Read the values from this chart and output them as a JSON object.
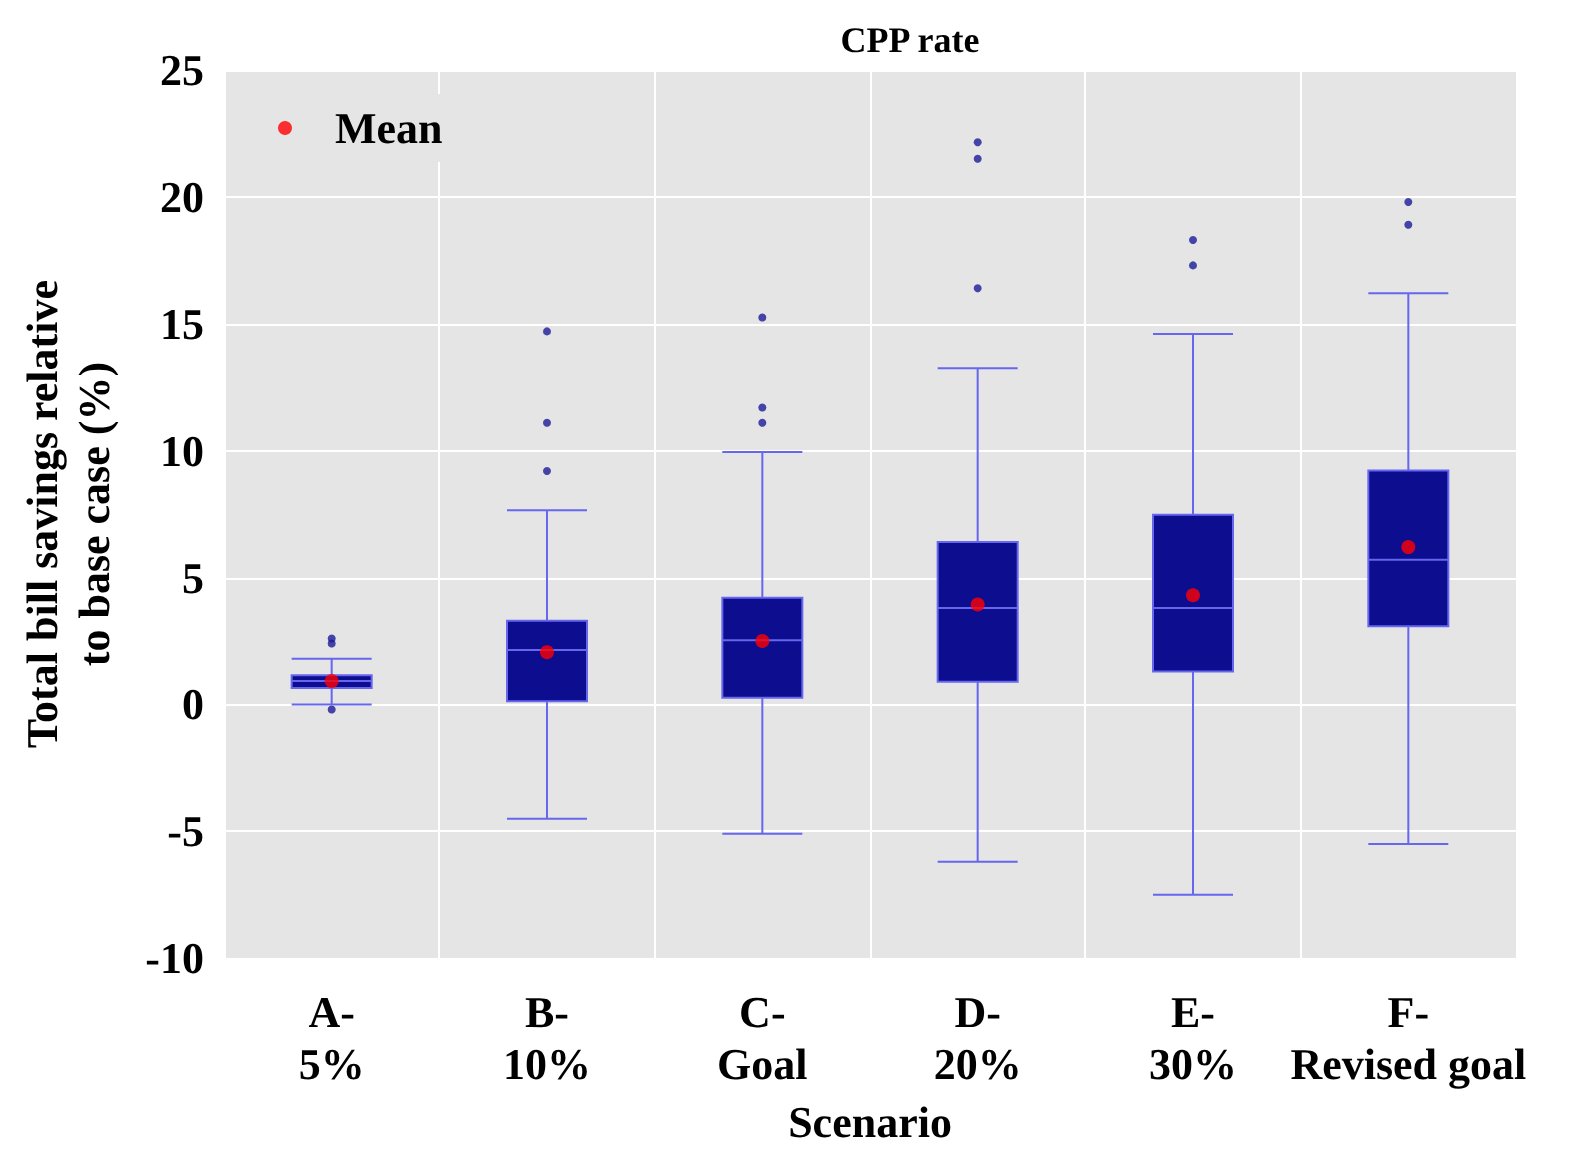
{
  "chart_data": {
    "type": "box",
    "title": "CPP rate",
    "xlabel": "Scenario",
    "ylabel": "Total bill savings relative\nto base case (%)",
    "categories": [
      "A-\n5%",
      "B-\n10%",
      "C-\nGoal",
      "D-\n20%",
      "E-\n30%",
      "F-\nRevised goal"
    ],
    "color": "#0d0d8f",
    "boxes": [
      {
        "low": 0.0,
        "q1": 0.65,
        "median": 0.92,
        "q3": 1.15,
        "high": 1.8,
        "outliers": [
          2.6,
          2.4,
          -0.2
        ]
      },
      {
        "low": -4.5,
        "q1": 0.13,
        "median": 2.14,
        "q3": 3.3,
        "high": 7.65,
        "outliers": [
          14.7,
          11.1,
          9.2
        ]
      },
      {
        "low": -5.1,
        "q1": 0.26,
        "median": 2.53,
        "q3": 4.2,
        "high": 9.95,
        "outliers": [
          15.25,
          11.7,
          11.1
        ]
      },
      {
        "low": -6.2,
        "q1": 0.89,
        "median": 3.8,
        "q3": 6.4,
        "high": 13.25,
        "outliers": [
          22.15,
          21.5,
          16.4
        ]
      },
      {
        "low": -7.5,
        "q1": 1.3,
        "median": 3.8,
        "q3": 7.47,
        "high": 14.6,
        "outliers": [
          18.3,
          17.3
        ]
      },
      {
        "low": -5.5,
        "q1": 3.08,
        "median": 5.7,
        "q3": 9.22,
        "high": 16.2,
        "outliers": [
          19.8,
          18.9
        ]
      }
    ],
    "series": [
      {
        "name": "Mean",
        "type": "scatter",
        "color": "#ff0000",
        "x": [
          "A-\n5%",
          "B-\n10%",
          "C-\nGoal",
          "D-\n20%",
          "E-\n30%",
          "F-\nRevised goal"
        ],
        "values": [
          0.92,
          2.06,
          2.5,
          3.94,
          4.3,
          6.2
        ]
      }
    ],
    "ylim": [
      -10,
      25
    ],
    "yticks": [
      -10,
      -5,
      0,
      5,
      10,
      15,
      20,
      25
    ],
    "grid": true,
    "legend": "top left"
  }
}
